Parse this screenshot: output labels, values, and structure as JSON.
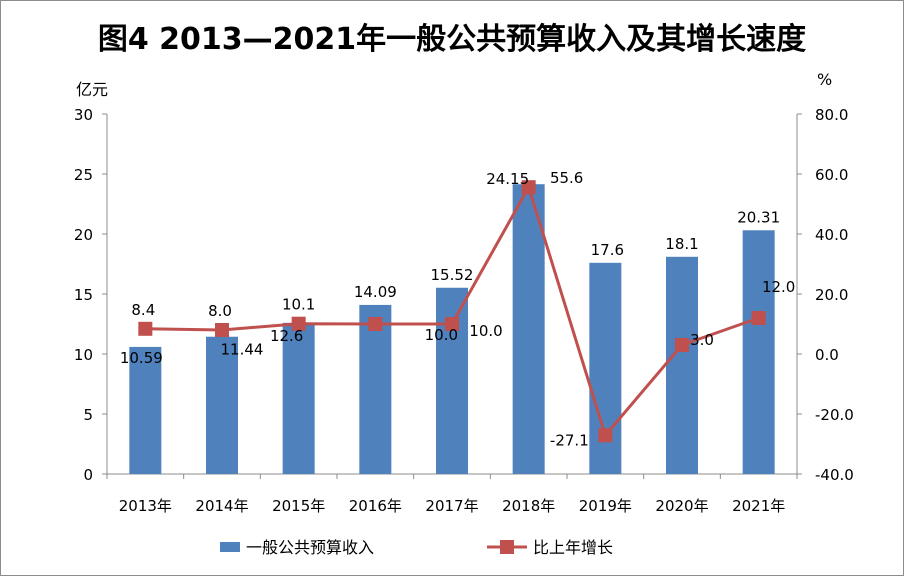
{
  "title": "图4  2013—2021年一般公共预算收入及其增长速度",
  "chart_data": {
    "type": "bar",
    "title": "图4  2013—2021年一般公共预算收入及其增长速度",
    "categories": [
      "2013年",
      "2014年",
      "2015年",
      "2016年",
      "2017年",
      "2018年",
      "2019年",
      "2020年",
      "2021年"
    ],
    "left_axis": {
      "label": "亿元",
      "range": [
        0,
        30
      ],
      "ticks": [
        "0",
        "5",
        "10",
        "15",
        "20",
        "25",
        "30"
      ]
    },
    "right_axis": {
      "label": "%",
      "range": [
        -40,
        80
      ],
      "ticks": [
        "-40.0",
        "-20.0",
        "0.0",
        "20.0",
        "40.0",
        "60.0",
        "80.0"
      ]
    },
    "series": [
      {
        "name": "一般公共预算收入",
        "type": "bar",
        "axis": "left",
        "color": "#4f81bd",
        "values": [
          10.59,
          11.44,
          12.6,
          14.09,
          15.52,
          24.15,
          17.6,
          18.1,
          20.31
        ],
        "labels": [
          "10.59",
          "11.44",
          "12.6",
          "14.09",
          "15.52",
          "24.15",
          "17.6",
          "18.1",
          "20.31"
        ]
      },
      {
        "name": "比上年增长",
        "type": "line",
        "axis": "right",
        "color": "#c0504d",
        "values": [
          8.4,
          8.0,
          10.1,
          10.0,
          10.0,
          55.6,
          -27.1,
          3.0,
          12.0
        ],
        "labels": [
          "8.4",
          "8.0",
          "10.1",
          "10.0",
          "10.0",
          "55.6",
          "-27.1",
          "3.0",
          "12.0"
        ]
      }
    ],
    "grid": false,
    "legend": "bottom"
  }
}
